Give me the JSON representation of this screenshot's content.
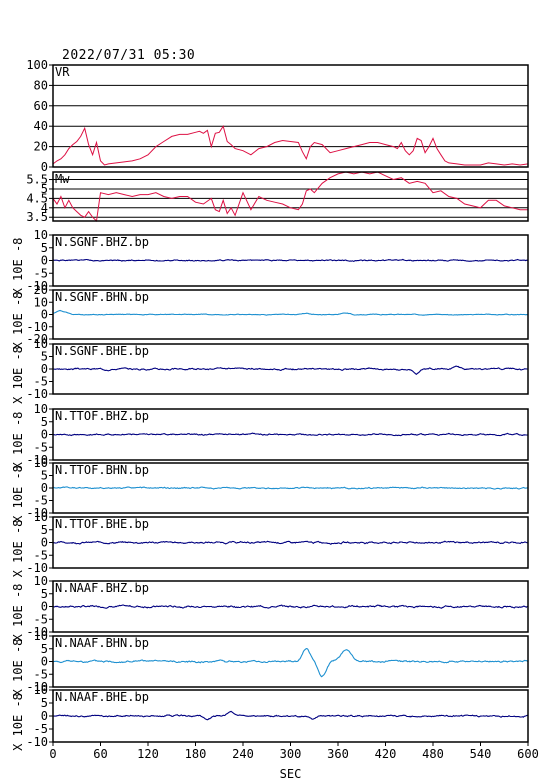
{
  "header": {
    "timestamp": "2022/07/31 05:30"
  },
  "colors": {
    "vr": "#dd1144",
    "mw": "#dd1144",
    "dark_trace": "#000080",
    "light_trace": "#1e90d0",
    "frame": "#000000",
    "grid": "#000000"
  },
  "chart_data": {
    "type": "line",
    "xlabel": "SEC",
    "xlim": [
      0,
      600
    ],
    "xticks": [
      0,
      60,
      120,
      180,
      240,
      300,
      360,
      420,
      480,
      540,
      600
    ],
    "panels": [
      {
        "id": "vr",
        "label": "VR",
        "ylim": [
          0,
          100
        ],
        "yticks": [
          0,
          20,
          40,
          60,
          80,
          100
        ],
        "grid": true,
        "color_key": "vr",
        "x": [
          0,
          5,
          10,
          15,
          20,
          25,
          30,
          35,
          40,
          45,
          50,
          55,
          60,
          65,
          70,
          80,
          90,
          100,
          110,
          120,
          130,
          140,
          150,
          160,
          170,
          180,
          185,
          190,
          195,
          200,
          205,
          210,
          215,
          220,
          225,
          230,
          240,
          250,
          260,
          270,
          280,
          290,
          300,
          310,
          315,
          320,
          325,
          330,
          340,
          350,
          360,
          370,
          380,
          390,
          400,
          410,
          420,
          430,
          435,
          440,
          445,
          450,
          455,
          460,
          465,
          470,
          475,
          480,
          485,
          490,
          495,
          500,
          510,
          520,
          530,
          540,
          550,
          560,
          570,
          580,
          590,
          600
        ],
        "values": [
          3,
          6,
          8,
          12,
          18,
          22,
          25,
          30,
          38,
          22,
          12,
          24,
          6,
          2,
          3,
          4,
          5,
          6,
          8,
          12,
          20,
          25,
          30,
          32,
          32,
          34,
          35,
          33,
          36,
          20,
          33,
          34,
          40,
          25,
          22,
          18,
          16,
          12,
          18,
          20,
          24,
          26,
          25,
          24,
          15,
          8,
          20,
          24,
          22,
          14,
          16,
          18,
          20,
          22,
          24,
          24,
          22,
          20,
          18,
          24,
          16,
          12,
          16,
          28,
          26,
          14,
          20,
          28,
          18,
          12,
          6,
          4,
          3,
          2,
          2,
          2,
          4,
          3,
          2,
          3,
          2,
          3
        ]
      },
      {
        "id": "mw",
        "label": "Mw",
        "ylim": [
          3.3,
          5.9
        ],
        "yticks": [
          3.5,
          4.0,
          4.5,
          5.0,
          5.5
        ],
        "ytick_labels": [
          "3.5",
          "4",
          "4.5",
          "5",
          "5.5"
        ],
        "grid": true,
        "color_key": "mw",
        "x": [
          0,
          5,
          10,
          15,
          20,
          25,
          30,
          35,
          40,
          45,
          50,
          55,
          60,
          70,
          80,
          90,
          100,
          110,
          120,
          130,
          140,
          150,
          160,
          170,
          180,
          190,
          200,
          205,
          210,
          215,
          220,
          225,
          230,
          240,
          250,
          260,
          270,
          280,
          290,
          300,
          310,
          315,
          320,
          325,
          330,
          340,
          350,
          360,
          370,
          380,
          390,
          400,
          410,
          420,
          430,
          440,
          450,
          460,
          470,
          480,
          490,
          500,
          510,
          520,
          530,
          540,
          550,
          560,
          570,
          580,
          590,
          600
        ],
        "values": [
          4.5,
          4.2,
          4.6,
          4.0,
          4.4,
          4.0,
          3.8,
          3.6,
          3.5,
          3.8,
          3.5,
          3.3,
          4.8,
          4.7,
          4.8,
          4.7,
          4.6,
          4.7,
          4.7,
          4.8,
          4.6,
          4.5,
          4.6,
          4.6,
          4.3,
          4.2,
          4.5,
          3.9,
          3.8,
          4.4,
          3.7,
          4.0,
          3.6,
          4.8,
          3.9,
          4.6,
          4.4,
          4.3,
          4.2,
          4.0,
          3.9,
          4.2,
          4.9,
          5.0,
          4.8,
          5.3,
          5.6,
          5.8,
          5.9,
          5.8,
          5.9,
          5.8,
          5.9,
          5.7,
          5.5,
          5.6,
          5.3,
          5.4,
          5.3,
          4.8,
          4.9,
          4.6,
          4.5,
          4.2,
          4.1,
          4.0,
          4.4,
          4.4,
          4.1,
          4.0,
          3.9,
          3.9
        ]
      },
      {
        "id": "sgnf-bhz",
        "label": "N.SGNF.BHZ.bp",
        "ylim": [
          -10,
          10
        ],
        "yticks": [
          -10,
          -5,
          0,
          5,
          10
        ],
        "ylabel": "X 10E -8",
        "color_key": "dark_trace",
        "amp": 0.3,
        "seed": 1,
        "bumps": []
      },
      {
        "id": "sgnf-bhn",
        "label": "N.SGNF.BHN.bp",
        "ylim": [
          -20,
          20
        ],
        "yticks": [
          -20,
          -10,
          0,
          10,
          20
        ],
        "ylabel": "X 10E -8",
        "color_key": "light_trace",
        "amp": 0.4,
        "seed": 2,
        "bumps": [
          [
            10,
            3,
            10
          ],
          [
            320,
            1,
            8
          ],
          [
            370,
            1,
            8
          ]
        ]
      },
      {
        "id": "sgnf-bhe",
        "label": "N.SGNF.BHE.bp",
        "ylim": [
          -10,
          10
        ],
        "yticks": [
          -10,
          -5,
          0,
          5,
          10
        ],
        "ylabel": "X 10E -8",
        "color_key": "dark_trace",
        "amp": 0.4,
        "seed": 3,
        "bumps": [
          [
            460,
            -1.5,
            6
          ],
          [
            510,
            1,
            6
          ]
        ]
      },
      {
        "id": "ttof-bhz",
        "label": "N.TTOF.BHZ.bp",
        "ylim": [
          -10,
          10
        ],
        "yticks": [
          -10,
          -5,
          0,
          5,
          10
        ],
        "ylabel": "X 10E -8",
        "color_key": "dark_trace",
        "amp": 0.35,
        "seed": 4,
        "bumps": []
      },
      {
        "id": "ttof-bhn",
        "label": "N.TTOF.BHN.bp",
        "ylim": [
          -10,
          10
        ],
        "yticks": [
          -10,
          -5,
          0,
          5,
          10
        ],
        "ylabel": "X 10E -8",
        "color_key": "light_trace",
        "amp": 0.35,
        "seed": 5,
        "bumps": []
      },
      {
        "id": "ttof-bhe",
        "label": "N.TTOF.BHE.bp",
        "ylim": [
          -10,
          10
        ],
        "yticks": [
          -10,
          -5,
          0,
          5,
          10
        ],
        "ylabel": "X 10E -8",
        "color_key": "dark_trace",
        "amp": 0.45,
        "seed": 6,
        "bumps": []
      },
      {
        "id": "naaf-bhz",
        "label": "N.NAAF.BHZ.bp",
        "ylim": [
          -10,
          10
        ],
        "yticks": [
          -10,
          -5,
          0,
          5,
          10
        ],
        "ylabel": "X 10E -8",
        "color_key": "dark_trace",
        "amp": 0.45,
        "seed": 7,
        "bumps": []
      },
      {
        "id": "naaf-bhn",
        "label": "N.NAAF.BHN.bp",
        "ylim": [
          -10,
          10
        ],
        "yticks": [
          -10,
          -5,
          0,
          5,
          10
        ],
        "ylabel": "X 10E -8",
        "color_key": "light_trace",
        "amp": 0.45,
        "seed": 8,
        "bumps": [
          [
            320,
            5,
            7
          ],
          [
            340,
            -6,
            7
          ],
          [
            370,
            4.5,
            9
          ],
          [
            210,
            0.8,
            5
          ]
        ]
      },
      {
        "id": "naaf-bhe",
        "label": "N.NAAF.BHE.bp",
        "ylim": [
          -10,
          10
        ],
        "yticks": [
          -10,
          -5,
          0,
          5,
          10
        ],
        "ylabel": "X 10E -8",
        "color_key": "dark_trace",
        "amp": 0.4,
        "seed": 9,
        "bumps": [
          [
            195,
            -1.5,
            6
          ],
          [
            225,
            1.5,
            6
          ],
          [
            328,
            -1.3,
            5
          ]
        ]
      }
    ]
  }
}
